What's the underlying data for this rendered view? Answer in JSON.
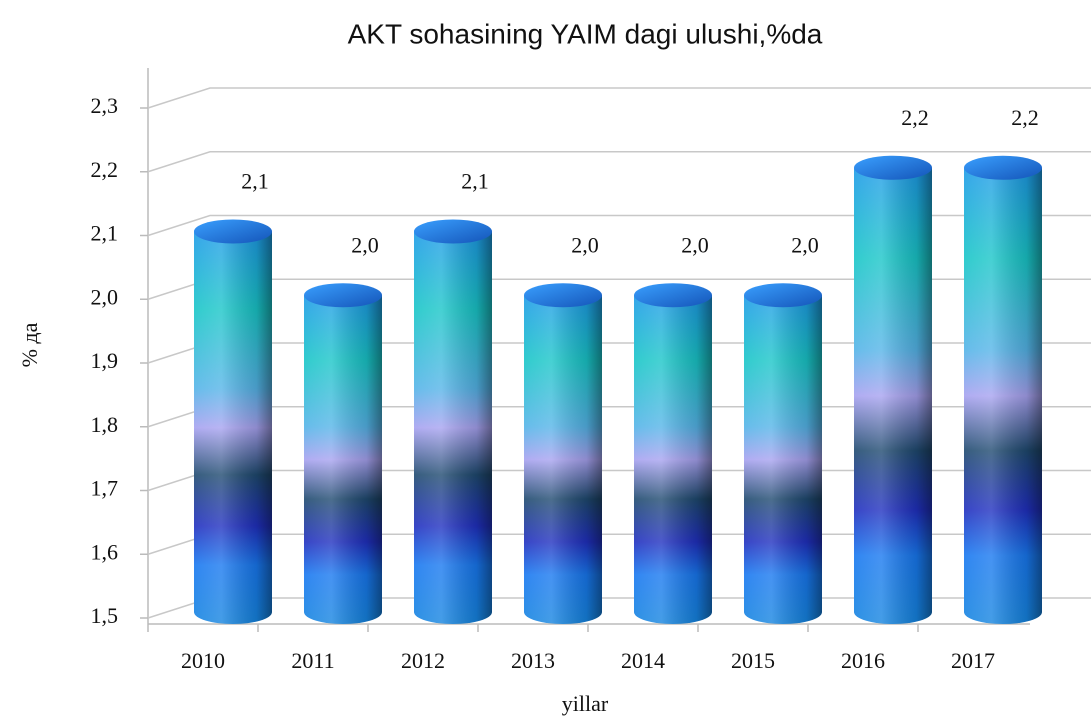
{
  "chart_data": {
    "type": "bar",
    "title": "AKT sohasining YAIM dagi ulushi,%da",
    "x_label": "yillar",
    "y_label": "% да",
    "categories": [
      "2010",
      "2011",
      "2012",
      "2013",
      "2014",
      "2015",
      "2016",
      "2017"
    ],
    "values": [
      2.1,
      2.0,
      2.1,
      2.0,
      2.0,
      2.0,
      2.2,
      2.2
    ],
    "value_labels": [
      "2,1",
      "2,0",
      "2,1",
      "2,0",
      "2,0",
      "2,0",
      "2,2",
      "2,2"
    ],
    "ylim": [
      1.5,
      2.3
    ],
    "yticks": [
      {
        "value": 1.5,
        "label": "1,5"
      },
      {
        "value": 1.6,
        "label": "1,6"
      },
      {
        "value": 1.7,
        "label": "1,7"
      },
      {
        "value": 1.8,
        "label": "1,8"
      },
      {
        "value": 1.9,
        "label": "1,9"
      },
      {
        "value": 2.0,
        "label": "2,0"
      },
      {
        "value": 2.1,
        "label": "2,1"
      },
      {
        "value": 2.2,
        "label": "2,2"
      },
      {
        "value": 2.3,
        "label": "2,3"
      }
    ],
    "grid": true
  }
}
